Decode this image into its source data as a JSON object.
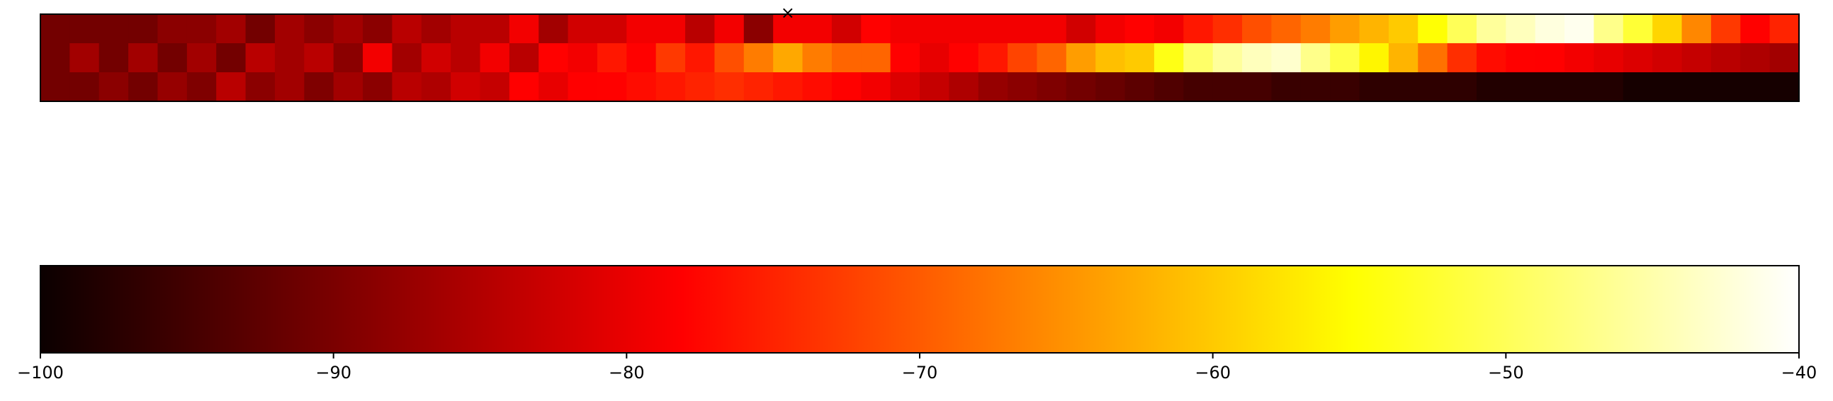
{
  "chart_data": [
    {
      "type": "heatmap",
      "title": "",
      "xlabel": "",
      "ylabel": "",
      "colormap": "hot",
      "vmin": -100,
      "vmax": -40,
      "rows": 3,
      "cols": 60,
      "grid": false,
      "values": [
        [
          -91,
          -91,
          -91,
          -91,
          -89,
          -89,
          -87,
          -91,
          -87,
          -89,
          -87,
          -89,
          -85,
          -87,
          -85,
          -85,
          -80,
          -87,
          -83,
          -83,
          -80,
          -80,
          -85,
          -80,
          -89,
          -80,
          -80,
          -83,
          -78,
          -80,
          -80,
          -80,
          -80,
          -80,
          -80,
          -83,
          -80,
          -78,
          -80,
          -76,
          -74,
          -71,
          -69,
          -67,
          -64,
          -62,
          -60,
          -55,
          -50,
          -46,
          -44,
          -42,
          -41,
          -47,
          -52,
          -59,
          -66,
          -73,
          -78,
          -75
        ],
        [
          -91,
          -87,
          -91,
          -87,
          -91,
          -87,
          -91,
          -85,
          -87,
          -85,
          -89,
          -80,
          -87,
          -83,
          -85,
          -80,
          -85,
          -78,
          -80,
          -76,
          -78,
          -73,
          -76,
          -71,
          -67,
          -63,
          -67,
          -69,
          -69,
          -78,
          -81,
          -78,
          -76,
          -72,
          -69,
          -64,
          -61,
          -60,
          -54,
          -49,
          -46,
          -44,
          -43,
          -47,
          -51,
          -56,
          -62,
          -68,
          -74,
          -77,
          -78,
          -79,
          -80,
          -81,
          -82,
          -83,
          -84,
          -85,
          -86,
          -87
        ],
        [
          -91,
          -91,
          -89,
          -91,
          -88,
          -90,
          -85,
          -89,
          -87,
          -90,
          -87,
          -89,
          -85,
          -86,
          -83,
          -84,
          -79,
          -81,
          -79,
          -78,
          -77,
          -76,
          -75,
          -74,
          -75,
          -76,
          -77,
          -78,
          -80,
          -82,
          -84,
          -86,
          -88,
          -89,
          -90,
          -91,
          -92,
          -93,
          -94,
          -95,
          -95,
          -95,
          -96,
          -96,
          -96,
          -97,
          -97,
          -97,
          -97,
          -98,
          -98,
          -98,
          -98,
          -98,
          -99,
          -99,
          -99,
          -99,
          -99,
          -99
        ]
      ],
      "marker": {
        "row": 0,
        "col": 25,
        "symbol": "×",
        "color": "#0000cc"
      }
    },
    {
      "type": "colorbar",
      "colormap": "hot",
      "orientation": "horizontal",
      "range": [
        -100,
        -40
      ],
      "ticks": [
        -100,
        -90,
        -80,
        -70,
        -60,
        -50,
        -40
      ],
      "tick_labels": [
        "−100",
        "−90",
        "−80",
        "−70",
        "−60",
        "−50",
        "−40"
      ]
    }
  ]
}
